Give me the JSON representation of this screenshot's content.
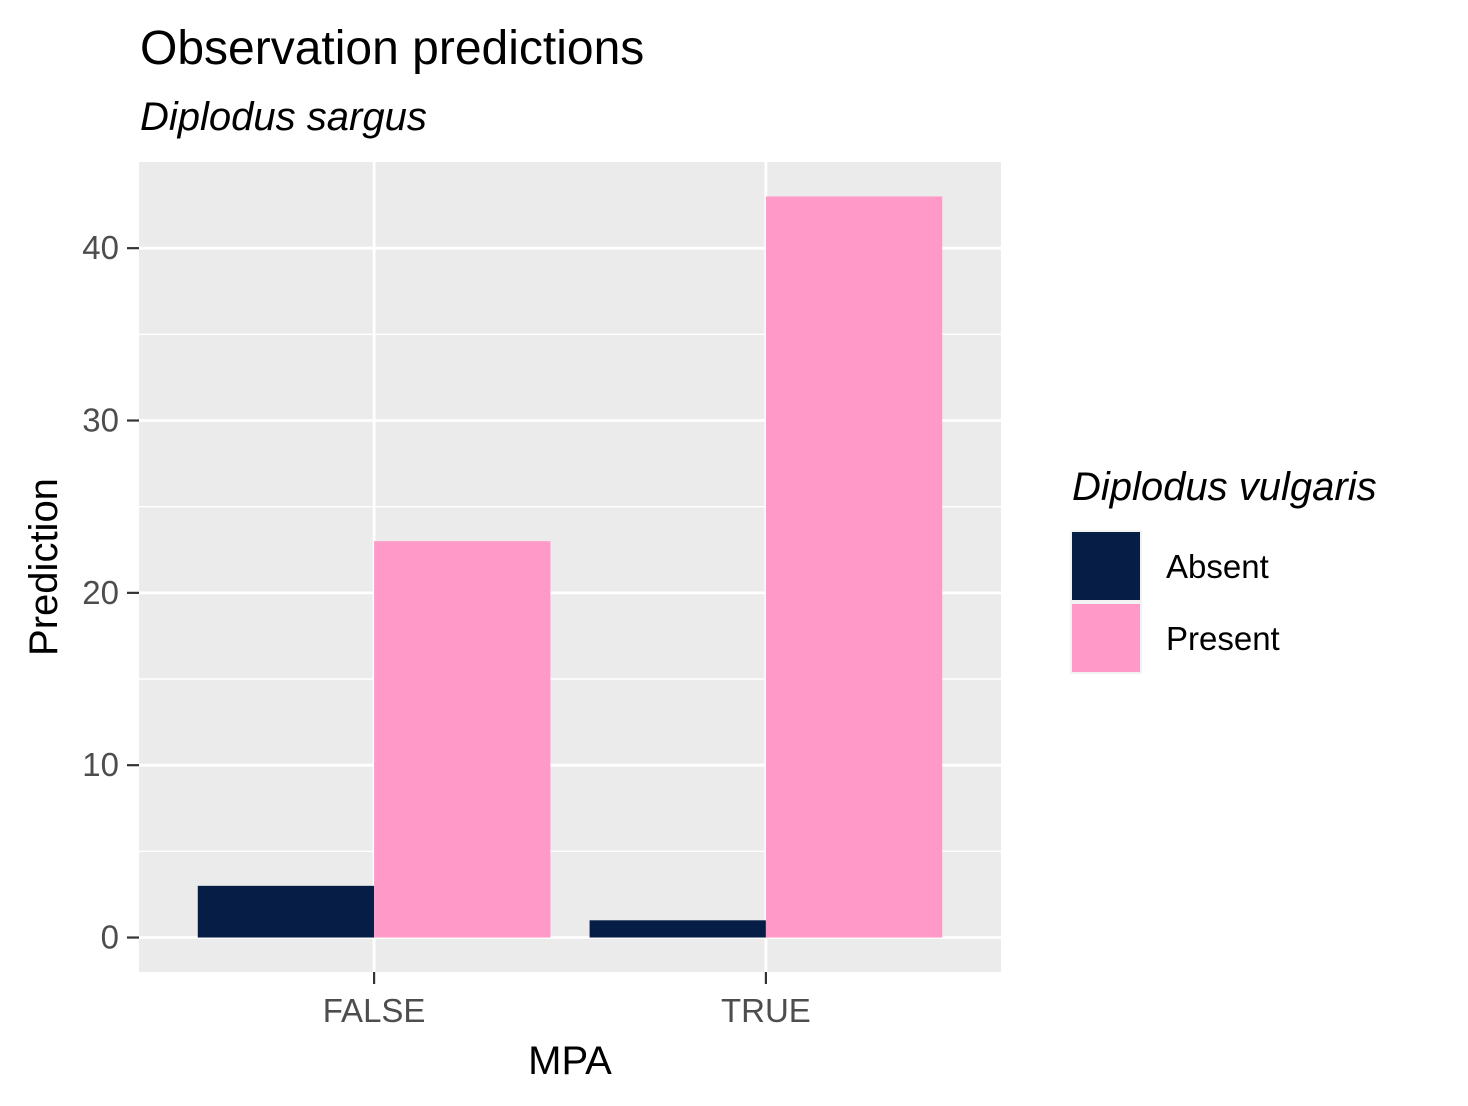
{
  "chart_data": {
    "type": "bar",
    "title": "Observation predictions",
    "subtitle": "Diplodus sargus",
    "xlabel": "MPA",
    "ylabel": "Prediction",
    "categories": [
      "FALSE",
      "TRUE"
    ],
    "series": [
      {
        "name": "Absent",
        "color": "#061e45",
        "values": [
          3,
          1
        ]
      },
      {
        "name": "Present",
        "color": "#ff99c8",
        "values": [
          23,
          43
        ]
      }
    ],
    "ylim": [
      -2,
      45
    ],
    "yticks": [
      0,
      10,
      20,
      30,
      40
    ],
    "legend": {
      "title": "Diplodus vulgaris",
      "placement": "right"
    },
    "grid": true,
    "panel_background": "#ebebeb"
  }
}
